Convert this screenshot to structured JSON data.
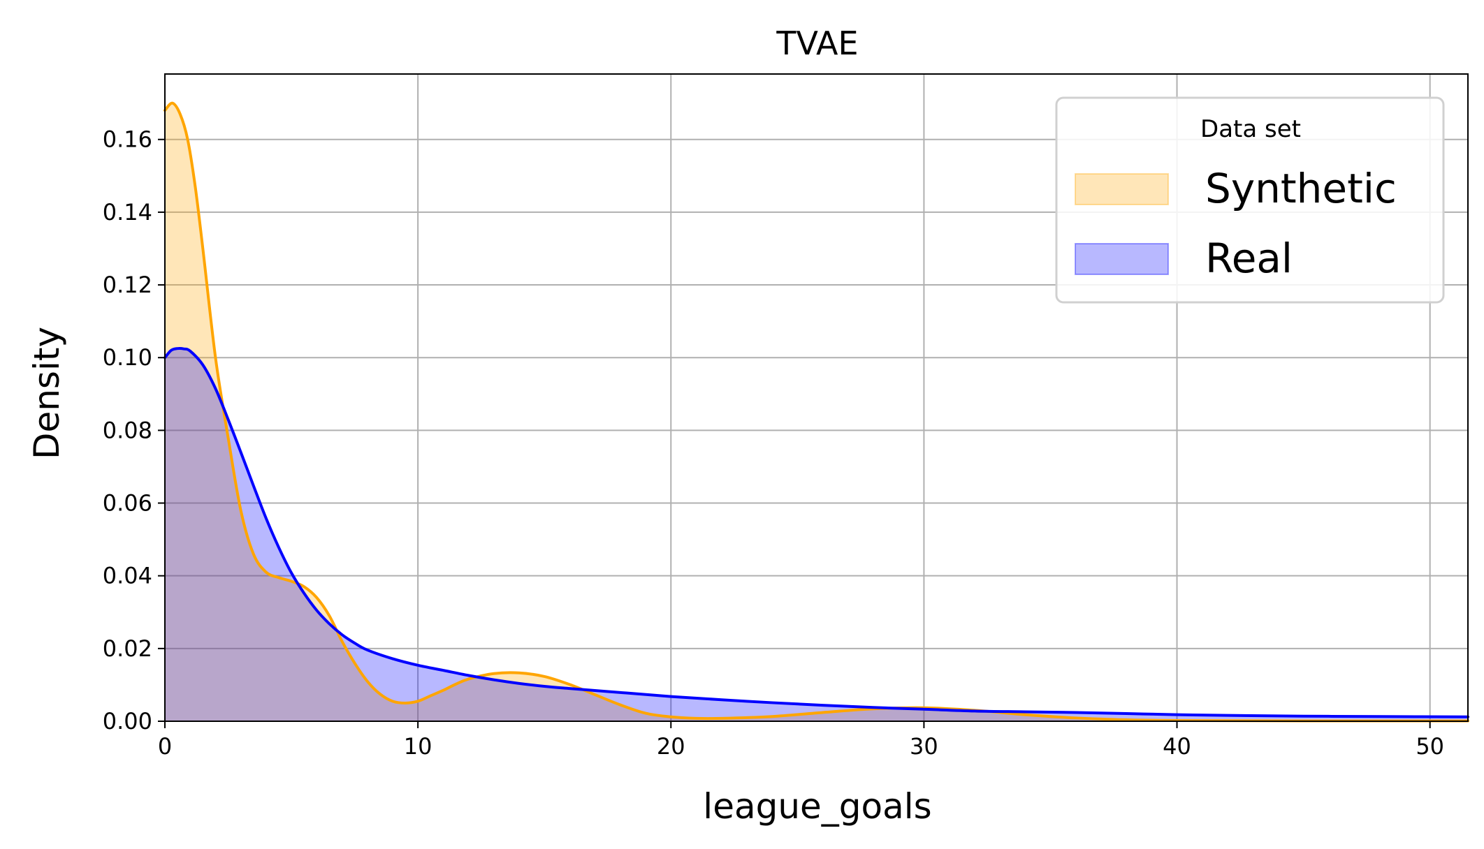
{
  "chart_data": {
    "type": "area",
    "title": "TVAE",
    "xlabel": "league_goals",
    "ylabel": "Density",
    "xlim": [
      0,
      51.5
    ],
    "ylim": [
      0,
      0.178
    ],
    "xticks": [
      0,
      10,
      20,
      30,
      40,
      50
    ],
    "yticks": [
      0.0,
      0.02,
      0.04,
      0.06,
      0.08,
      0.1,
      0.12,
      0.14,
      0.16
    ],
    "xtick_labels": [
      "0",
      "10",
      "20",
      "30",
      "40",
      "50"
    ],
    "ytick_labels": [
      "0.00",
      "0.02",
      "0.04",
      "0.06",
      "0.08",
      "0.10",
      "0.12",
      "0.14",
      "0.16"
    ],
    "grid": true,
    "legend": {
      "title": "Data set",
      "position": "top-right"
    },
    "series": [
      {
        "name": "Synthetic",
        "color": "#ffa500",
        "x": [
          0,
          0.3,
          0.6,
          0.9,
          1.2,
          1.5,
          2,
          2.5,
          3,
          3.5,
          4,
          4.5,
          5,
          5.5,
          6,
          6.5,
          7,
          7.5,
          8,
          8.5,
          9,
          9.5,
          10,
          10.5,
          11,
          11.5,
          12,
          13,
          14,
          15,
          16,
          17,
          18,
          19,
          20,
          21,
          22,
          24,
          26,
          28,
          30,
          32,
          34,
          36,
          38,
          40,
          45,
          51.5
        ],
        "y": [
          0.168,
          0.17,
          0.167,
          0.16,
          0.147,
          0.13,
          0.1,
          0.078,
          0.058,
          0.046,
          0.041,
          0.0395,
          0.0385,
          0.037,
          0.034,
          0.029,
          0.022,
          0.016,
          0.011,
          0.0075,
          0.0055,
          0.005,
          0.0055,
          0.007,
          0.0085,
          0.0102,
          0.0116,
          0.0131,
          0.0133,
          0.0123,
          0.0101,
          0.0073,
          0.0045,
          0.0022,
          0.0012,
          0.0008,
          0.0008,
          0.0013,
          0.0024,
          0.0034,
          0.0037,
          0.003,
          0.0018,
          0.0009,
          0.0004,
          0.0002,
          0.0001,
          0.0001
        ]
      },
      {
        "name": "Real",
        "color": "#0000ff",
        "x": [
          0,
          0.25,
          0.5,
          0.75,
          1,
          1.5,
          2,
          2.5,
          3,
          3.5,
          4,
          4.5,
          5,
          5.5,
          6,
          6.5,
          7,
          7.5,
          8,
          9,
          10,
          11,
          12,
          13,
          14,
          15,
          16,
          18,
          20,
          22,
          24,
          26,
          28,
          30,
          32,
          34,
          36,
          38,
          40,
          42,
          45,
          48,
          51.5
        ],
        "y": [
          0.1,
          0.102,
          0.1025,
          0.1024,
          0.1018,
          0.098,
          0.0915,
          0.083,
          0.074,
          0.0648,
          0.0558,
          0.0478,
          0.0408,
          0.0352,
          0.0305,
          0.0268,
          0.0238,
          0.0215,
          0.0196,
          0.0172,
          0.0154,
          0.014,
          0.0126,
          0.0114,
          0.0104,
          0.0096,
          0.009,
          0.0079,
          0.0068,
          0.0059,
          0.0051,
          0.0044,
          0.0038,
          0.0033,
          0.0028,
          0.0026,
          0.0024,
          0.0021,
          0.0018,
          0.0016,
          0.0014,
          0.0013,
          0.0012
        ]
      }
    ]
  }
}
